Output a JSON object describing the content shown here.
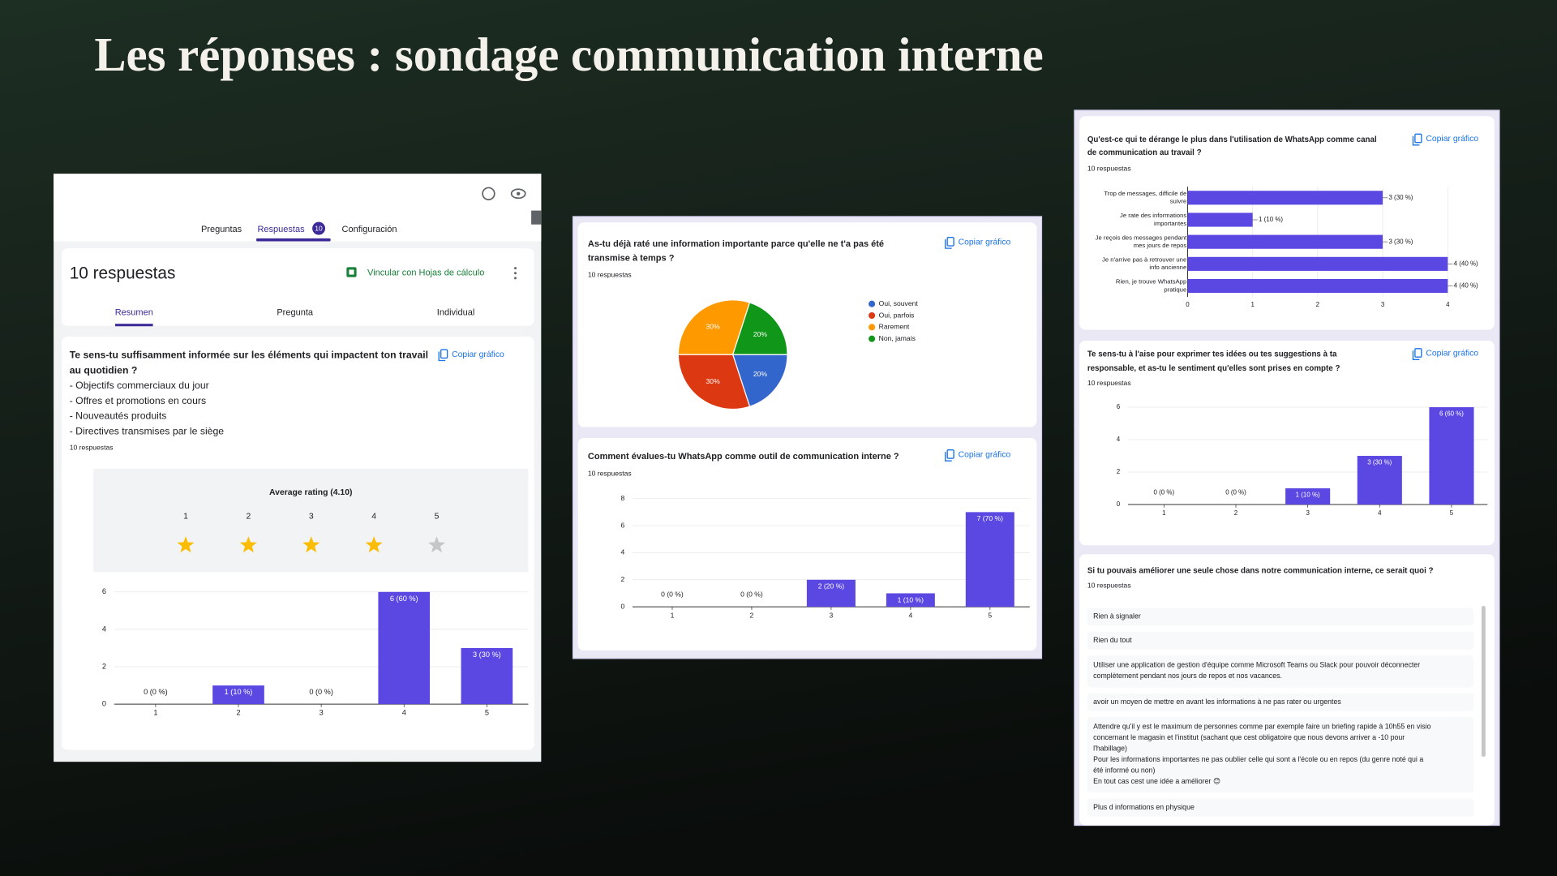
{
  "title": "Les réponses : sondage communication interne",
  "form_ui": {
    "tabs": [
      "Preguntas",
      "Respuestas",
      "Configuración"
    ],
    "response_badge": "10",
    "summary_title": "10 respuestas",
    "sheets_link": "Vincular con Hojas de cálculo",
    "view_tabs": [
      "Resumen",
      "Pregunta",
      "Individual"
    ]
  },
  "chart_data": [
    {
      "type": "bar",
      "title": [
        "Te sens-tu suffisamment informée sur les éléments qui impactent ton travail",
        "au quotidien ?"
      ],
      "description": [
        "- Objectifs commerciaux du jour",
        "- Offres et promotions en cours",
        "- Nouveautés produits",
        "- Directives transmises par le siège"
      ],
      "responses_count": "10 respuestas",
      "copy_button": "Copiar gráfico",
      "rating": {
        "label": "Average rating (4.10)",
        "value": 4.1,
        "scale": [
          1,
          2,
          3,
          4,
          5
        ]
      },
      "categories": [
        "1",
        "2",
        "3",
        "4",
        "5"
      ],
      "values": [
        0,
        1,
        0,
        6,
        3
      ],
      "value_labels": [
        "0 (0 %)",
        "1 (10 %)",
        "0 (0 %)",
        "6 (60 %)",
        "3 (30 %)"
      ],
      "color": "#5b48e2",
      "ylim": [
        0,
        6
      ],
      "yticks": [
        0,
        2,
        4,
        6
      ],
      "grid": true
    },
    {
      "type": "pie",
      "title": [
        "As-tu déjà raté une information importante parce qu'elle ne t'a pas été",
        "transmise à temps ?"
      ],
      "responses_count": "10 respuestas",
      "copy_button": "Copiar gráfico",
      "categories": [
        "Oui, souvent",
        "Oui, parfois",
        "Rarement",
        "Non, jamais"
      ],
      "values": [
        20,
        30,
        30,
        20
      ],
      "value_labels": [
        "20%",
        "30%",
        "30%",
        "20%"
      ],
      "colors": [
        "#3366cc",
        "#dc3912",
        "#ff9900",
        "#109618"
      ]
    },
    {
      "type": "bar",
      "title": [
        "Comment évalues-tu WhatsApp comme outil de communication interne ?"
      ],
      "responses_count": "10 respuestas",
      "copy_button": "Copiar gráfico",
      "categories": [
        "1",
        "2",
        "3",
        "4",
        "5"
      ],
      "values": [
        0,
        0,
        2,
        1,
        7
      ],
      "value_labels": [
        "0 (0 %)",
        "0 (0 %)",
        "2 (20 %)",
        "1 (10 %)",
        "7 (70 %)"
      ],
      "color": "#5b48e2",
      "ylim": [
        0,
        8
      ],
      "yticks": [
        0,
        2,
        4,
        6,
        8
      ],
      "grid": true
    },
    {
      "type": "barh",
      "title": [
        "Qu'est-ce qui te dérange le plus dans l'utilisation de WhatsApp comme canal",
        "de communication au travail ?"
      ],
      "responses_count": "10 respuestas",
      "copy_button": "Copiar gráfico",
      "categories": [
        "Trop de messages, difficile de suivre",
        "Je rate des informations importantes",
        "Je reçois des messages pendant mes jours de repos",
        "Je n'arrive pas à retrouver une info ancienne",
        "Rien, je trouve WhatsApp pratique"
      ],
      "values": [
        3,
        1,
        3,
        4,
        4
      ],
      "value_labels": [
        "3 (30 %)",
        "1 (10 %)",
        "3 (30 %)",
        "4 (40 %)",
        "4 (40 %)"
      ],
      "color": "#5b48e2",
      "xlim": [
        0,
        4
      ],
      "xticks": [
        0,
        1,
        2,
        3,
        4
      ],
      "grid": true
    },
    {
      "type": "bar",
      "title": [
        "Te sens-tu à l'aise pour exprimer tes idées ou tes suggestions à ta",
        "responsable, et as-tu le sentiment qu'elles sont prises en compte ?"
      ],
      "responses_count": "10 respuestas",
      "copy_button": "Copiar gráfico",
      "categories": [
        "1",
        "2",
        "3",
        "4",
        "5"
      ],
      "values": [
        0,
        0,
        1,
        3,
        6
      ],
      "value_labels": [
        "0 (0 %)",
        "0 (0 %)",
        "1 (10 %)",
        "3 (30 %)",
        "6 (60 %)"
      ],
      "color": "#5b48e2",
      "ylim": [
        0,
        6
      ],
      "yticks": [
        0,
        2,
        4,
        6
      ],
      "grid": true
    }
  ],
  "text_question": {
    "question": "Si tu pouvais améliorer une seule chose dans notre communication interne, ce serait quoi ?",
    "responses_count": "10 respuestas",
    "responses": [
      [
        "Rien à signaler"
      ],
      [
        "Rien du tout"
      ],
      [
        "Utiliser une application de gestion d'équipe comme Microsoft Teams ou Slack pour pouvoir déconnecter",
        "complètement pendant nos jours de repos et nos vacances."
      ],
      [
        "avoir un moyen de mettre en avant les informations à ne pas rater ou urgentes"
      ],
      [
        "Attendre qu'il y est le maximum de personnes comme par exemple faire un briefing rapide à 10h55 en visio",
        "concernant le magasin et l'institut (sachant que cest obligatoire que nous devons arriver a -10 pour",
        "l'habillage)",
        "Pour les informations importantes ne pas oublier celle qui sont a l'école ou en repos (du genre noté qui a",
        "été informé ou non)",
        "En tout cas cest une idée a améliorer 😊"
      ],
      [
        "Plus d informations en physique"
      ]
    ]
  }
}
